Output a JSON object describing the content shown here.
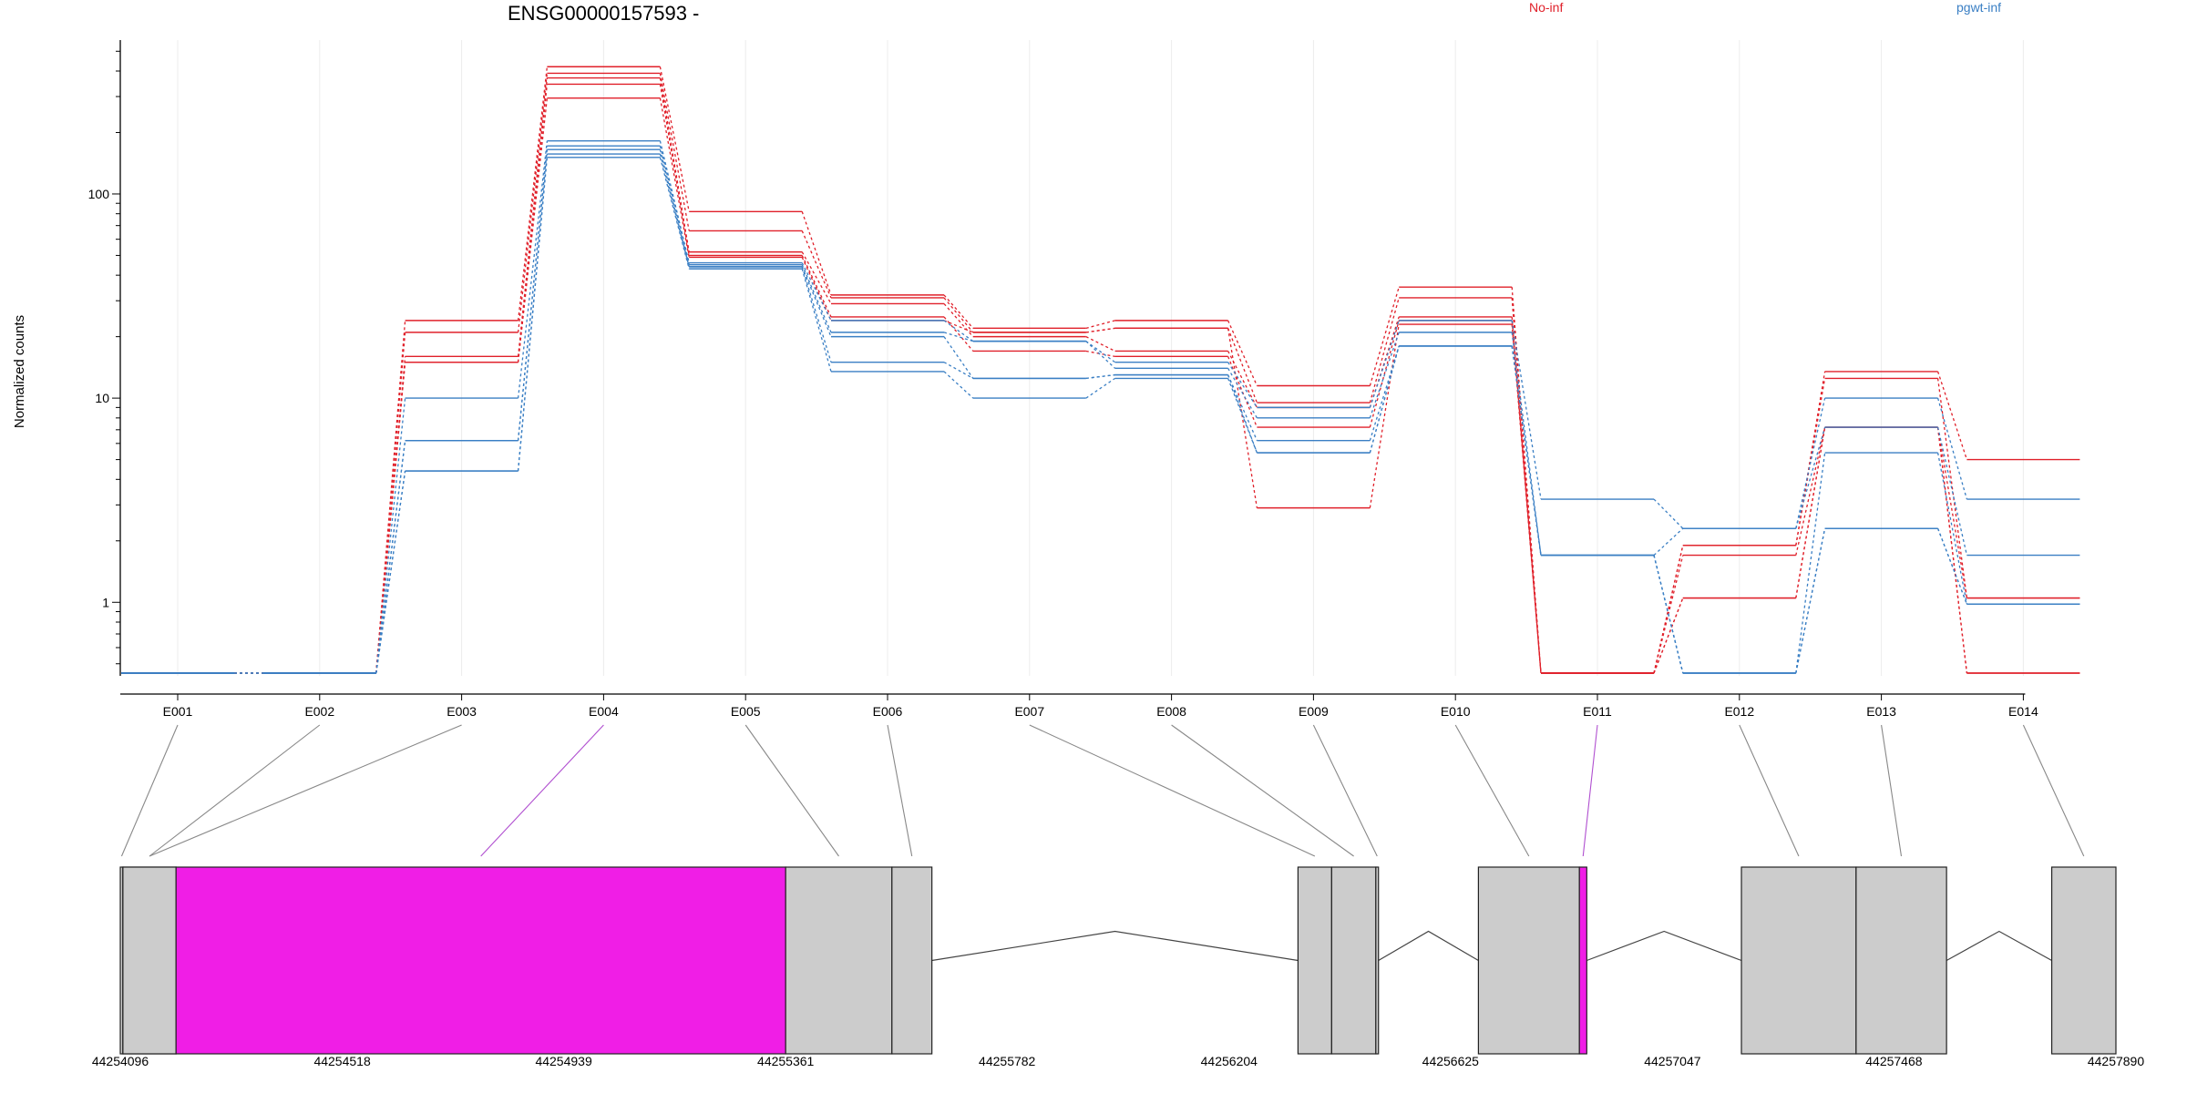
{
  "chart_data": {
    "type": "line",
    "title": "ENSG00000157593 -",
    "ylabel": "Normalized counts",
    "y_scale": "log",
    "ylim": [
      0.45,
      550
    ],
    "y_ticks": [
      1,
      10,
      100
    ],
    "y_tick_labels": [
      "1",
      "10",
      "100"
    ],
    "grid": "light vertical lines at exon positions",
    "legend_position": "top-right",
    "categories": [
      "E001",
      "E002",
      "E003",
      "E004",
      "E005",
      "E006",
      "E007",
      "E008",
      "E009",
      "E010",
      "E011",
      "E012",
      "E013",
      "E014"
    ],
    "groups": [
      {
        "name": "No-inf",
        "color": "#e0202a"
      },
      {
        "name": "pgwt-inf",
        "color": "#3a7fc4"
      }
    ],
    "series": [
      {
        "group": "No-inf",
        "values": [
          0.45,
          0.45,
          24,
          420,
          82,
          32,
          22,
          24,
          11.5,
          35,
          0.45,
          1.9,
          13.5,
          5
        ]
      },
      {
        "group": "No-inf",
        "values": [
          0.45,
          0.45,
          21,
          390,
          66,
          31,
          21,
          22,
          9.5,
          31,
          0.45,
          1.9,
          12.5,
          1.05
        ]
      },
      {
        "group": "No-inf",
        "values": [
          0.45,
          0.45,
          16,
          370,
          52,
          29,
          20,
          17,
          9,
          25,
          0.45,
          1.7,
          7.2,
          1.05
        ]
      },
      {
        "group": "No-inf",
        "values": [
          0.45,
          0.45,
          15,
          345,
          50,
          25,
          17,
          16,
          7.2,
          24,
          0.45,
          1.05,
          7.2,
          0.45
        ]
      },
      {
        "group": "No-inf",
        "values": [
          0.45,
          0.45,
          15,
          295,
          49,
          24,
          21,
          22,
          2.9,
          23,
          0.45,
          1.05,
          7.2,
          0.45
        ]
      },
      {
        "group": "pgwt-inf",
        "values": [
          0.45,
          0.45,
          10,
          182,
          46,
          24,
          19,
          15,
          9,
          24,
          3.2,
          2.3,
          10,
          3.2
        ]
      },
      {
        "group": "pgwt-inf",
        "values": [
          0.45,
          0.45,
          6.2,
          172,
          45,
          21,
          19,
          14,
          8,
          21,
          1.7,
          2.3,
          7.2,
          1.7
        ]
      },
      {
        "group": "pgwt-inf",
        "values": [
          0.45,
          0.45,
          6.2,
          165,
          44,
          20,
          12.5,
          13,
          6.2,
          18,
          1.7,
          0.45,
          5.4,
          0.98
        ]
      },
      {
        "group": "pgwt-inf",
        "values": [
          0.45,
          0.45,
          4.4,
          157,
          44,
          15,
          12.5,
          13,
          5.4,
          18,
          1.7,
          0.45,
          2.3,
          0.98
        ]
      },
      {
        "group": "pgwt-inf",
        "values": [
          0.45,
          0.45,
          4.4,
          151,
          43,
          13.5,
          10,
          12.5,
          5.4,
          18,
          1.7,
          0.45,
          2.3,
          0.98
        ]
      }
    ],
    "gene_model": {
      "coordinate_range": [
        44254096,
        44257890
      ],
      "axis_ticks": [
        44254096,
        44254518,
        44254939,
        44255361,
        44255782,
        44256204,
        44256625,
        44257047,
        44257468,
        44257890
      ],
      "exons": [
        {
          "id": "E001",
          "start": 44254096,
          "end": 44254101,
          "highlight": false
        },
        {
          "id": "E002",
          "start": 44254101,
          "end": 44254202,
          "highlight": false
        },
        {
          "id": "E003",
          "start": 44254101,
          "end": 44254202,
          "highlight": false
        },
        {
          "id": "E004",
          "start": 44254202,
          "end": 44255361,
          "highlight": true
        },
        {
          "id": "E005",
          "start": 44255361,
          "end": 44255563,
          "highlight": false
        },
        {
          "id": "E006",
          "start": 44255563,
          "end": 44255639,
          "highlight": false
        },
        {
          "id": "E007",
          "start": 44256335,
          "end": 44256399,
          "highlight": false
        },
        {
          "id": "E008",
          "start": 44256399,
          "end": 44256483,
          "highlight": false
        },
        {
          "id": "E009",
          "start": 44256483,
          "end": 44256488,
          "highlight": false
        },
        {
          "id": "E010",
          "start": 44256678,
          "end": 44256870,
          "highlight": false
        },
        {
          "id": "E011",
          "start": 44256870,
          "end": 44256884,
          "highlight": true
        },
        {
          "id": "E012",
          "start": 44257178,
          "end": 44257396,
          "highlight": false
        },
        {
          "id": "E013",
          "start": 44257396,
          "end": 44257568,
          "highlight": false
        },
        {
          "id": "E014",
          "start": 44257768,
          "end": 44257890,
          "highlight": false
        }
      ],
      "introns": [
        {
          "start": 44255639,
          "end": 44256335
        },
        {
          "start": 44256488,
          "end": 44256678
        },
        {
          "start": 44256884,
          "end": 44257178
        },
        {
          "start": 44257568,
          "end": 44257768
        }
      ],
      "exon_fill": "#cccccc",
      "highlight_fill": "#f01ee6"
    }
  }
}
